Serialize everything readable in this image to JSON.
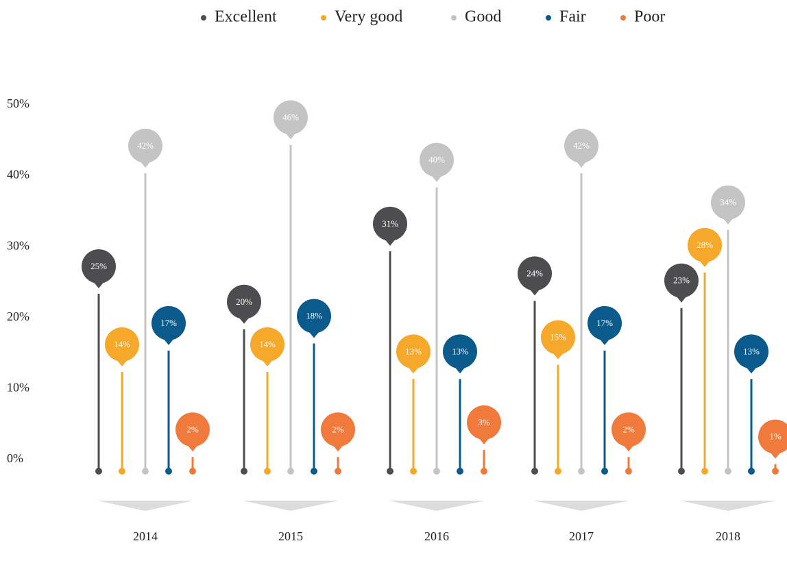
{
  "chart_data": {
    "type": "lollipop",
    "categories": [
      "2014",
      "2015",
      "2016",
      "2017",
      "2018"
    ],
    "series": [
      {
        "name": "Excellent",
        "color": "#4d4d4f",
        "values": [
          25,
          20,
          31,
          24,
          23
        ],
        "value_labels": [
          "25%",
          "20%",
          "31%",
          "24%",
          "23%"
        ]
      },
      {
        "name": "Very good",
        "color": "#f5a82a",
        "values": [
          14,
          14,
          13,
          15,
          28
        ],
        "value_labels": [
          "14%",
          "14%",
          "13%",
          "15%",
          "28%"
        ]
      },
      {
        "name": "Good",
        "color": "#c4c4c4",
        "values": [
          42,
          46,
          40,
          42,
          34
        ],
        "value_labels": [
          "42%",
          "46%",
          "40%",
          "42%",
          "34%"
        ]
      },
      {
        "name": "Fair",
        "color": "#0a5a8c",
        "values": [
          17,
          18,
          13,
          17,
          13
        ],
        "value_labels": [
          "17%",
          "18%",
          "13%",
          "17%",
          "13%"
        ]
      },
      {
        "name": "Poor",
        "color": "#f07a3c",
        "values": [
          2,
          2,
          3,
          2,
          1
        ],
        "value_labels": [
          "2%",
          "2%",
          "3%",
          "2%",
          "1%"
        ]
      }
    ],
    "ylim": [
      0,
      50
    ],
    "yticks": [
      {
        "value": 0,
        "label": "0%"
      },
      {
        "value": 10,
        "label": "10%"
      },
      {
        "value": 20,
        "label": "20%"
      },
      {
        "value": 30,
        "label": "30%"
      },
      {
        "value": 40,
        "label": "40%"
      },
      {
        "value": 50,
        "label": "50%"
      }
    ],
    "legend": "top"
  }
}
